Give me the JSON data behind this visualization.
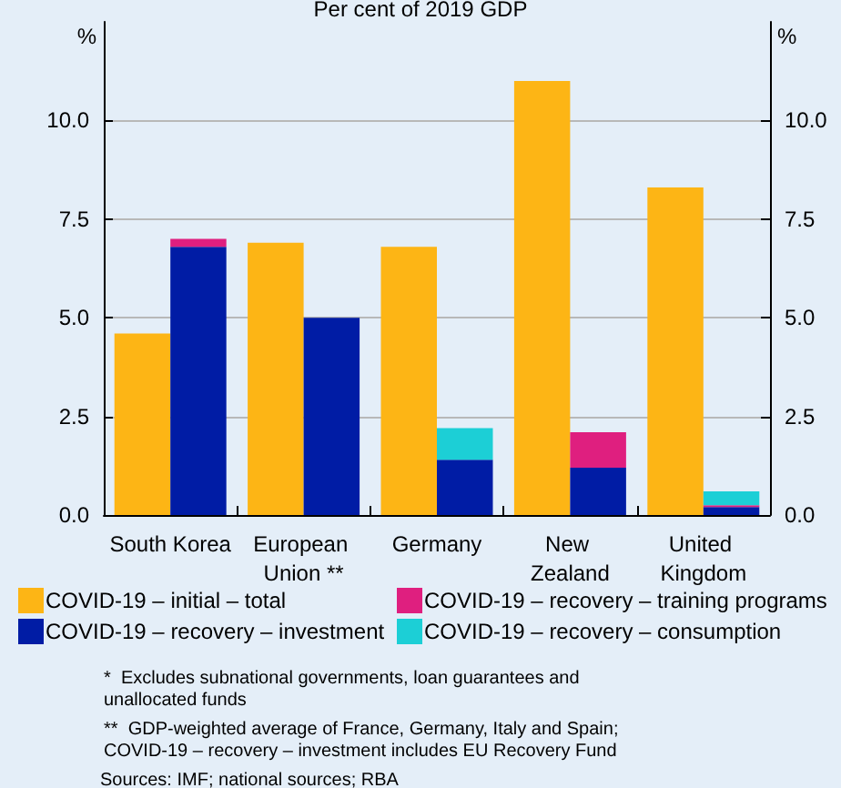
{
  "chart_data": {
    "type": "bar",
    "subtitle": "Per cent of 2019 GDP",
    "ylabel": "%",
    "y2label": "%",
    "categories": [
      "South Korea",
      "European Union **",
      "Germany",
      "New Zealand",
      "United Kingdom"
    ],
    "series": [
      {
        "name": "COVID-19 – initial – total",
        "color": "#fdb515",
        "axis": "y2",
        "values": [
          4.6,
          6.9,
          6.8,
          11.0,
          8.3
        ]
      },
      {
        "name": "COVID-19 – recovery – investment",
        "color": "#001ca5",
        "values": [
          6.8,
          5.0,
          1.4,
          1.2,
          0.2
        ]
      },
      {
        "name": "COVID-19 – recovery – training programs",
        "color": "#df1f7f",
        "values": [
          0.2,
          null,
          null,
          0.9,
          0.05
        ]
      },
      {
        "name": "COVID-19 – recovery – consumption",
        "color": "#1ccfd6",
        "values": [
          null,
          null,
          0.8,
          null,
          0.35
        ]
      }
    ],
    "stacked": true,
    "ylim": [
      0,
      12.5
    ],
    "yticks": [
      {
        "value": 0,
        "label": "0.0"
      },
      {
        "value": 2.5,
        "label": "2.5"
      },
      {
        "value": 5,
        "label": "5.0"
      },
      {
        "value": 7.5,
        "label": "7.5"
      },
      {
        "value": 10,
        "label": "10.0"
      }
    ],
    "y2lim": [
      0,
      12.5
    ],
    "y2ticks": [
      {
        "value": 0,
        "label": "0.0"
      },
      {
        "value": 2.5,
        "label": "2.5"
      },
      {
        "value": 5,
        "label": "5.0"
      },
      {
        "value": 7.5,
        "label": "7.5"
      },
      {
        "value": 10,
        "label": "10.0"
      }
    ],
    "grid": "y",
    "legend": "bottom",
    "annotations": [
      "*  Excludes subnational governments, loan guarantees and unallocated funds",
      "**  GDP-weighted average of France, Germany, Italy and Spain; COVID-19 – recovery – investment includes EU Recovery Fund",
      "Sources: IMF; national sources; RBA"
    ]
  }
}
